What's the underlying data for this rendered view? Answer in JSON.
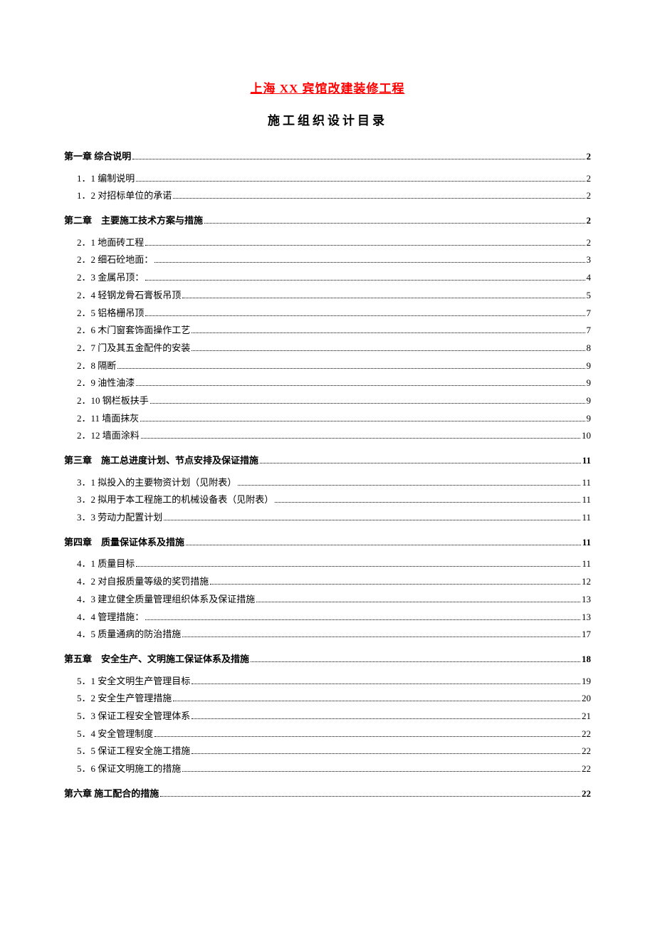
{
  "title": "上海 XX 宾馆改建装修工程",
  "subtitle": "施工组织设计目录",
  "colors": {
    "title_color": "#ff0000",
    "text_color": "#000000",
    "background": "#ffffff"
  },
  "typography": {
    "title_fontsize": 17,
    "subtitle_fontsize": 17,
    "body_fontsize": 13,
    "font_family": "SimSun"
  },
  "toc": [
    {
      "chapter_label": "第一章 综合说明",
      "chapter_page": "2",
      "sections": [
        {
          "label": "1．1 编制说明",
          "page": "2"
        },
        {
          "label": "1．2 对招标单位的承诺",
          "page": "2"
        }
      ]
    },
    {
      "chapter_label": "第二章　主要施工技术方案与措施",
      "chapter_page": "2",
      "sections": [
        {
          "label": "2．1 地面砖工程",
          "page": "2"
        },
        {
          "label": "2．2 细石砼地面：",
          "page": "3"
        },
        {
          "label": "2．3 金属吊顶：",
          "page": "4"
        },
        {
          "label": "2．4 轻钢龙骨石膏板吊顶",
          "page": "5"
        },
        {
          "label": "2．5 铝格栅吊顶",
          "page": "7"
        },
        {
          "label": "2．6 木门窗套饰面操作工艺",
          "page": "7"
        },
        {
          "label": "2．7 门及其五金配件的安装",
          "page": "8"
        },
        {
          "label": "2．8 隔断",
          "page": "9"
        },
        {
          "label": "2．9 油性油漆",
          "page": "9"
        },
        {
          "label": "2．10 钢栏板扶手",
          "page": "9"
        },
        {
          "label": "2．11 墙面抹灰",
          "page": "9"
        },
        {
          "label": "2．12 墙面涂料",
          "page": "10"
        }
      ]
    },
    {
      "chapter_label": "第三章　施工总进度计划、节点安排及保证措施",
      "chapter_page": "11",
      "sections": [
        {
          "label": "3．1 拟投入的主要物资计划（见附表）",
          "page": "11"
        },
        {
          "label": "3．2 拟用于本工程施工的机械设备表（见附表）",
          "page": "11"
        },
        {
          "label": "3．3 劳动力配置计划",
          "page": "11"
        }
      ]
    },
    {
      "chapter_label": "第四章　质量保证体系及措施",
      "chapter_page": "11",
      "sections": [
        {
          "label": "4．1 质量目标",
          "page": "11"
        },
        {
          "label": "4．2 对自报质量等级的奖罚措施",
          "page": "12"
        },
        {
          "label": "4．3 建立健全质量管理组织体系及保证措施",
          "page": "13"
        },
        {
          "label": "4．4 管理措施：",
          "page": "13"
        },
        {
          "label": "4．5 质量通病的防治措施",
          "page": "17"
        }
      ]
    },
    {
      "chapter_label": "第五章　安全生产、文明施工保证体系及措施",
      "chapter_page": "18",
      "sections": [
        {
          "label": "5．1 安全文明生产管理目标",
          "page": "19"
        },
        {
          "label": "5．2 安全生产管理措施",
          "page": "20"
        },
        {
          "label": "5．3 保证工程安全管理体系",
          "page": "21"
        },
        {
          "label": "5．4 安全管理制度",
          "page": "22"
        },
        {
          "label": "5．5 保证工程安全施工措施",
          "page": "22"
        },
        {
          "label": "5．6 保证文明施工的措施",
          "page": "22"
        }
      ]
    },
    {
      "chapter_label": "第六章 施工配合的措施",
      "chapter_page": "22",
      "sections": []
    }
  ]
}
